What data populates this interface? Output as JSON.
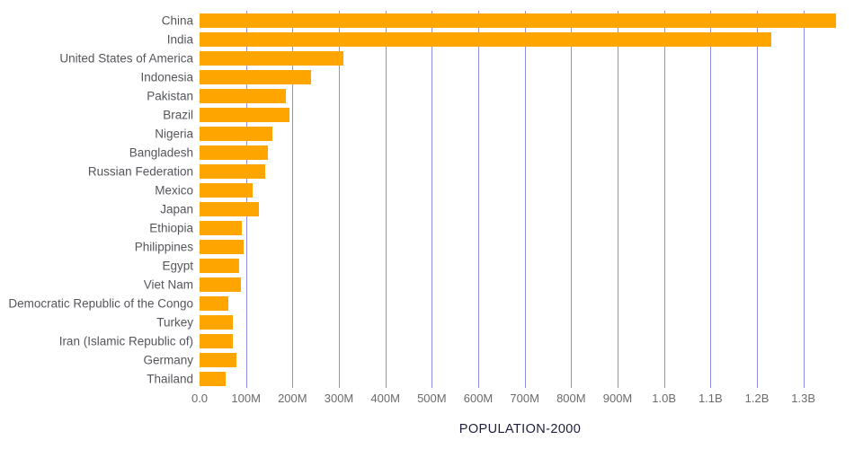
{
  "chart_data": {
    "type": "bar",
    "orientation": "horizontal",
    "title": "",
    "xlabel": "POPULATION-2000",
    "ylabel": "",
    "categories": [
      "China",
      "India",
      "United States of America",
      "Indonesia",
      "Pakistan",
      "Brazil",
      "Nigeria",
      "Bangladesh",
      "Russian Federation",
      "Mexico",
      "Japan",
      "Ethiopia",
      "Philippines",
      "Egypt",
      "Viet Nam",
      "Democratic Republic of the Congo",
      "Turkey",
      "Iran (Islamic Republic of)",
      "Germany",
      "Thailand"
    ],
    "values": [
      1370000000,
      1230000000,
      310000000,
      240000000,
      185000000,
      193000000,
      156000000,
      147000000,
      141000000,
      114000000,
      127000000,
      91000000,
      95000000,
      85000000,
      89000000,
      62000000,
      71000000,
      71000000,
      79000000,
      56000000
    ],
    "x_tick_labels": [
      "0.0",
      "100M",
      "200M",
      "300M",
      "400M",
      "500M",
      "600M",
      "700M",
      "800M",
      "900M",
      "1.0B",
      "1.1B",
      "1.2B",
      "1.3B"
    ],
    "x_tick_values": [
      0,
      100000000,
      200000000,
      300000000,
      400000000,
      500000000,
      600000000,
      700000000,
      800000000,
      900000000,
      1000000000,
      1100000000,
      1200000000,
      1300000000
    ],
    "xlim": [
      0,
      1380000000
    ],
    "grid": true,
    "legend": false,
    "bar_color": "#FFA500",
    "gridline_color": "#8f8fe6",
    "category_label_color": "#55565c",
    "tick_label_color": "#6b6b6b",
    "axis_title_color": "#1e1e38",
    "background_color": "#ffffff"
  }
}
